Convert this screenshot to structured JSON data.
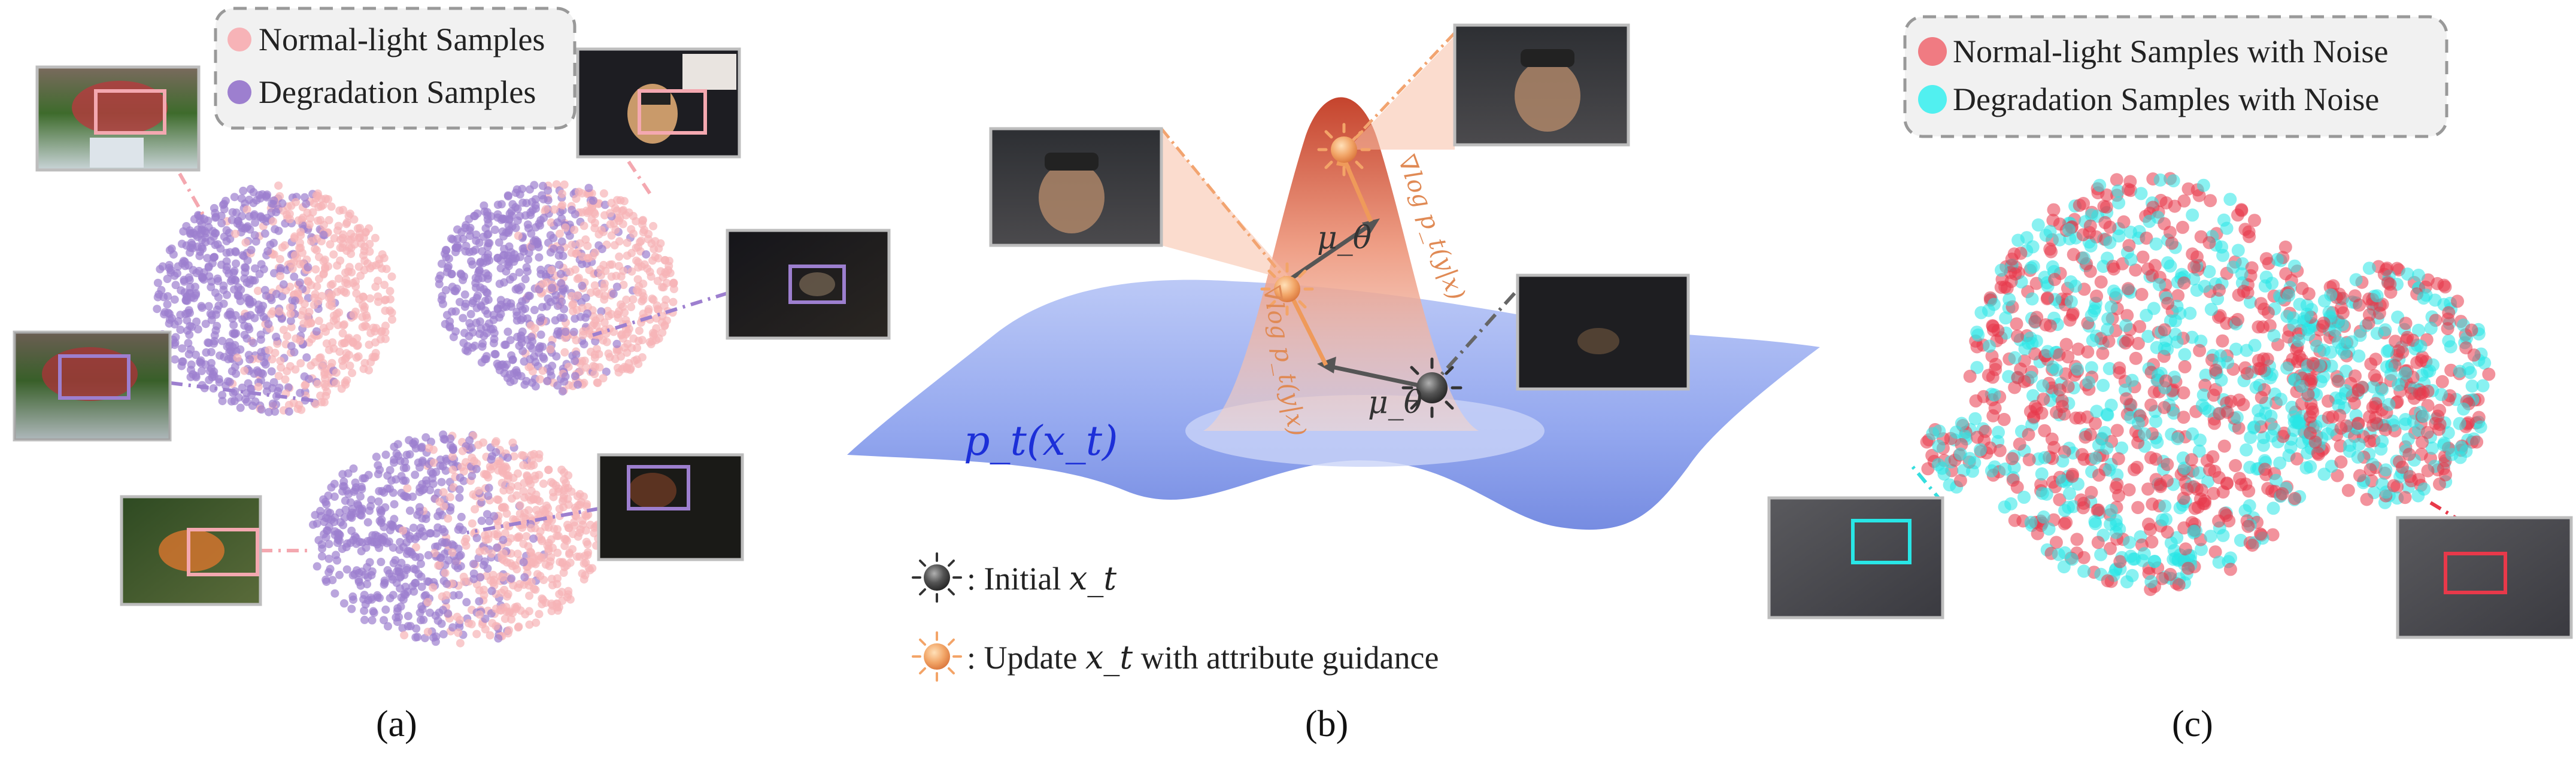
{
  "panel_a": {
    "label": "(a)",
    "legend": [
      {
        "text": "Normal-light Samples",
        "color": "#f7b3b7"
      },
      {
        "text": "Degradation Samples",
        "color": "#9d7fcf"
      }
    ]
  },
  "panel_b": {
    "label": "(b)",
    "density_label": "p_t(x_t)",
    "mu_label": "μ_θ",
    "grad_label": "∇log p_t(y|x)",
    "legend": [
      {
        "text_prefix": ": Initial ",
        "text_var": "x_t",
        "text_suffix": "",
        "icon": "dark-sun-icon"
      },
      {
        "text_prefix": ": Update ",
        "text_var": "x_t",
        "text_suffix": " with attribute guidance",
        "icon": "orange-sun-icon"
      }
    ]
  },
  "panel_c": {
    "label": "(c)",
    "legend": [
      {
        "text": "Normal-light Samples with Noise",
        "color": "#f0666e"
      },
      {
        "text": "Degradation Samples with Noise",
        "color": "#35f0f0"
      }
    ]
  },
  "colors": {
    "normal": "#f7b3b7",
    "degradation": "#9d7fcf",
    "noise_normal": "#e8394a",
    "noise_degradation": "#28e6e6",
    "surface": "#8fa6ee",
    "peak": "#c84a2e"
  }
}
